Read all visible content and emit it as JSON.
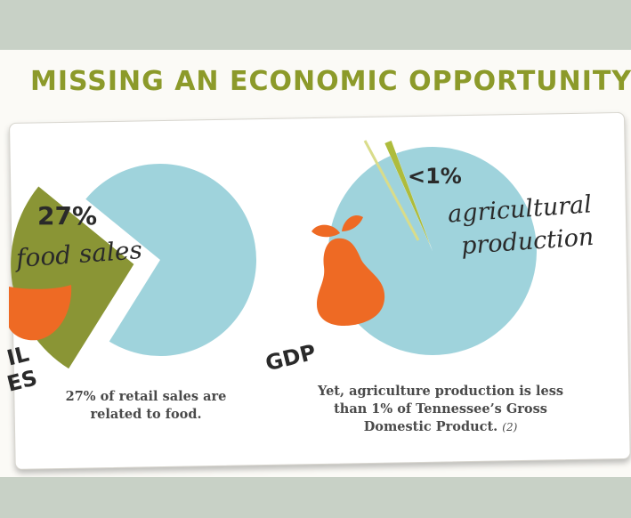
{
  "headline": "MISSING AN ECONOMIC OPPORTUNITY",
  "colors": {
    "band": "#c8d1c6",
    "headline": "#8c9a2a",
    "pie_main": "#9fd3dc",
    "pie_slice_olive": "#8a9535",
    "pie_slice_light": "#aebc3c",
    "fruit": "#ee6a24",
    "leaf": "#ee6a24",
    "text": "#2a2a2a",
    "caption": "#4a4a4a"
  },
  "left_panel": {
    "value_label": "27%",
    "script_label": "food sales",
    "partial_label_line1": "IL",
    "partial_label_line2": "ES",
    "caption_line1": "27% of retail sales are",
    "caption_line2": "related to food."
  },
  "right_panel": {
    "value_label": "<1%",
    "script_line1": "agricultural",
    "script_line2": "production",
    "pie_label": "GDP",
    "caption_line1": "Yet, agriculture production is less",
    "caption_line2": "than 1% of Tennessee’s Gross",
    "caption_line3": "Domestic Product.",
    "citation": "(2)"
  },
  "chart_data": [
    {
      "type": "pie",
      "title": "",
      "slices": [
        {
          "label": "food sales",
          "value": 27
        },
        {
          "label": "",
          "value": 73
        }
      ]
    },
    {
      "type": "pie",
      "title": "GDP",
      "slices": [
        {
          "label": "agricultural production",
          "value": 1
        },
        {
          "label": "",
          "value": 99
        }
      ]
    }
  ]
}
